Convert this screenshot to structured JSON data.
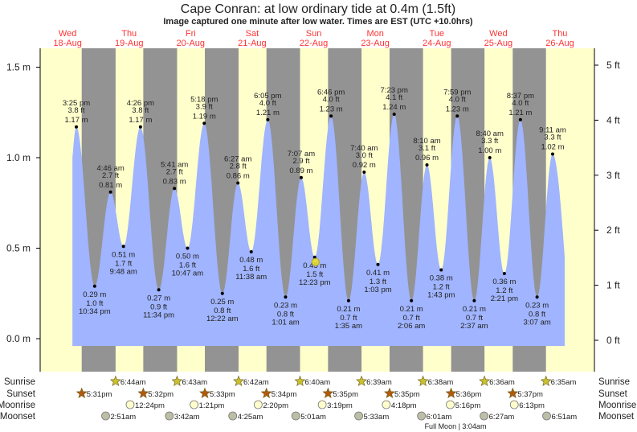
{
  "title": "Cape Conran: at low  ordinary tide at 0.4m (1.5ft)",
  "subtitle": "Image captured one minute after low water. Times are EST (UTC +10.0hrs)",
  "colors": {
    "day": "#ffffcc",
    "night": "#939393",
    "water": "#a0b4ff",
    "day_label": "#ff3333",
    "sunrise": "#c8c030",
    "sunset": "#b05a10",
    "moonrise": "#ffffcc",
    "moonset": "#bdbda8"
  },
  "chart_data": {
    "type": "area",
    "ylim_m": [
      -0.04,
      1.6
    ],
    "y_ticks_m": [
      "1.5 m",
      "1.0 m",
      "0.5 m",
      "0.0 m"
    ],
    "y_tick_values_m": [
      1.5,
      1.0,
      0.5,
      0.0
    ],
    "y_ticks_ft": [
      "5 ft",
      "4 ft",
      "3 ft",
      "2 ft",
      "1 ft",
      "0 ft"
    ],
    "y_tick_values_ft": [
      5,
      4,
      3,
      2,
      1,
      0
    ],
    "days": [
      {
        "dow": "Wed",
        "date": "18-Aug"
      },
      {
        "dow": "Thu",
        "date": "19-Aug"
      },
      {
        "dow": "Fri",
        "date": "20-Aug"
      },
      {
        "dow": "Sat",
        "date": "21-Aug"
      },
      {
        "dow": "Sun",
        "date": "22-Aug"
      },
      {
        "dow": "Mon",
        "date": "23-Aug"
      },
      {
        "dow": "Tue",
        "date": "24-Aug"
      },
      {
        "dow": "Wed",
        "date": "25-Aug"
      },
      {
        "dow": "Thu",
        "date": "26-Aug"
      }
    ],
    "tides": [
      {
        "day": 0,
        "type": "high",
        "time": "3:25 pm",
        "ft": "3.8 ft",
        "m": "1.17 m",
        "value": 1.17
      },
      {
        "day": 0,
        "type": "low",
        "time": "10:34 pm",
        "ft": "1.0 ft",
        "m": "0.29 m",
        "value": 0.29
      },
      {
        "day": 1,
        "type": "high",
        "time": "4:46 am",
        "ft": "2.7 ft",
        "m": "0.81 m",
        "value": 0.81
      },
      {
        "day": 1,
        "type": "low",
        "time": "9:48 am",
        "ft": "1.7 ft",
        "m": "0.51 m",
        "value": 0.51
      },
      {
        "day": 1,
        "type": "high",
        "time": "4:26 pm",
        "ft": "3.8 ft",
        "m": "1.17 m",
        "value": 1.17
      },
      {
        "day": 1,
        "type": "low",
        "time": "11:34 pm",
        "ft": "0.9 ft",
        "m": "0.27 m",
        "value": 0.27
      },
      {
        "day": 2,
        "type": "high",
        "time": "5:41 am",
        "ft": "2.7 ft",
        "m": "0.83 m",
        "value": 0.83
      },
      {
        "day": 2,
        "type": "low",
        "time": "10:47 am",
        "ft": "1.6 ft",
        "m": "0.50 m",
        "value": 0.5
      },
      {
        "day": 2,
        "type": "high",
        "time": "5:18 pm",
        "ft": "3.9 ft",
        "m": "1.19 m",
        "value": 1.19
      },
      {
        "day": 3,
        "type": "low",
        "time": "12:22 am",
        "ft": "0.8 ft",
        "m": "0.25 m",
        "value": 0.25
      },
      {
        "day": 3,
        "type": "high",
        "time": "6:27 am",
        "ft": "2.8 ft",
        "m": "0.86 m",
        "value": 0.86
      },
      {
        "day": 3,
        "type": "low",
        "time": "11:38 am",
        "ft": "1.6 ft",
        "m": "0.48 m",
        "value": 0.48
      },
      {
        "day": 3,
        "type": "high",
        "time": "6:05 pm",
        "ft": "4.0 ft",
        "m": "1.21 m",
        "value": 1.21
      },
      {
        "day": 4,
        "type": "low",
        "time": "1:01 am",
        "ft": "0.8 ft",
        "m": "0.23 m",
        "value": 0.23
      },
      {
        "day": 4,
        "type": "high",
        "time": "7:07 am",
        "ft": "2.9 ft",
        "m": "0.89 m",
        "value": 0.89
      },
      {
        "day": 4,
        "type": "low",
        "time": "12:23 pm",
        "ft": "1.5 ft",
        "m": "0.45 m",
        "value": 0.45
      },
      {
        "day": 4,
        "type": "high",
        "time": "6:46 pm",
        "ft": "4.0 ft",
        "m": "1.23 m",
        "value": 1.23
      },
      {
        "day": 5,
        "type": "low",
        "time": "1:35 am",
        "ft": "0.7 ft",
        "m": "0.21 m",
        "value": 0.21
      },
      {
        "day": 5,
        "type": "high",
        "time": "7:40 am",
        "ft": "3.0 ft",
        "m": "0.92 m",
        "value": 0.92
      },
      {
        "day": 5,
        "type": "low",
        "time": "1:03 pm",
        "ft": "1.3 ft",
        "m": "0.41 m",
        "value": 0.41
      },
      {
        "day": 5,
        "type": "high",
        "time": "7:23 pm",
        "ft": "4.1 ft",
        "m": "1.24 m",
        "value": 1.24
      },
      {
        "day": 6,
        "type": "low",
        "time": "2:06 am",
        "ft": "0.7 ft",
        "m": "0.21 m",
        "value": 0.21
      },
      {
        "day": 6,
        "type": "high",
        "time": "8:10 am",
        "ft": "3.1 ft",
        "m": "0.96 m",
        "value": 0.96
      },
      {
        "day": 6,
        "type": "low",
        "time": "1:43 pm",
        "ft": "1.2 ft",
        "m": "0.38 m",
        "value": 0.38
      },
      {
        "day": 6,
        "type": "high",
        "time": "7:59 pm",
        "ft": "4.0 ft",
        "m": "1.23 m",
        "value": 1.23
      },
      {
        "day": 7,
        "type": "low",
        "time": "2:37 am",
        "ft": "0.7 ft",
        "m": "0.21 m",
        "value": 0.21
      },
      {
        "day": 7,
        "type": "high",
        "time": "8:40 am",
        "ft": "3.3 ft",
        "m": "1.00 m",
        "value": 1.0
      },
      {
        "day": 7,
        "type": "low",
        "time": "2:21 pm",
        "ft": "1.2 ft",
        "m": "0.36 m",
        "value": 0.36
      },
      {
        "day": 7,
        "type": "high",
        "time": "8:37 pm",
        "ft": "4.0 ft",
        "m": "1.21 m",
        "value": 1.21
      },
      {
        "day": 8,
        "type": "low",
        "time": "3:07 am",
        "ft": "0.8 ft",
        "m": "0.23 m",
        "value": 0.23
      },
      {
        "day": 8,
        "type": "high",
        "time": "9:11 am",
        "ft": "3.3 ft",
        "m": "1.02 m",
        "value": 1.02
      }
    ],
    "current_marker": {
      "day": 4,
      "time": "12:23 pm",
      "value": 0.45
    }
  },
  "rows": {
    "sunrise": {
      "label": "Sunrise",
      "events": [
        {
          "day": 1,
          "time": "6:44am"
        },
        {
          "day": 2,
          "time": "6:43am"
        },
        {
          "day": 3,
          "time": "6:42am"
        },
        {
          "day": 4,
          "time": "6:40am"
        },
        {
          "day": 5,
          "time": "6:39am"
        },
        {
          "day": 6,
          "time": "6:38am"
        },
        {
          "day": 7,
          "time": "6:36am"
        },
        {
          "day": 8,
          "time": "6:35am"
        }
      ]
    },
    "sunset": {
      "label": "Sunset",
      "events": [
        {
          "day": 0,
          "time": "5:31pm"
        },
        {
          "day": 1,
          "time": "5:32pm"
        },
        {
          "day": 2,
          "time": "5:33pm"
        },
        {
          "day": 3,
          "time": "5:34pm"
        },
        {
          "day": 4,
          "time": "5:35pm"
        },
        {
          "day": 5,
          "time": "5:35pm"
        },
        {
          "day": 6,
          "time": "5:36pm"
        },
        {
          "day": 7,
          "time": "5:37pm"
        }
      ]
    },
    "moonrise": {
      "label": "Moonrise",
      "events": [
        {
          "day": 1,
          "time": "12:24pm"
        },
        {
          "day": 2,
          "time": "1:21pm"
        },
        {
          "day": 3,
          "time": "2:20pm"
        },
        {
          "day": 4,
          "time": "3:19pm"
        },
        {
          "day": 5,
          "time": "4:18pm"
        },
        {
          "day": 6,
          "time": "5:16pm"
        },
        {
          "day": 7,
          "time": "6:13pm"
        }
      ]
    },
    "moonset": {
      "label": "Moonset",
      "events": [
        {
          "day": 1,
          "time": "2:51am"
        },
        {
          "day": 2,
          "time": "3:42am"
        },
        {
          "day": 3,
          "time": "4:25am"
        },
        {
          "day": 4,
          "time": "5:01am"
        },
        {
          "day": 5,
          "time": "5:33am"
        },
        {
          "day": 6,
          "time": "6:01am"
        },
        {
          "day": 7,
          "time": "6:27am"
        },
        {
          "day": 8,
          "time": "6:51am"
        }
      ]
    }
  },
  "full_moon": "Full Moon | 3:04am"
}
